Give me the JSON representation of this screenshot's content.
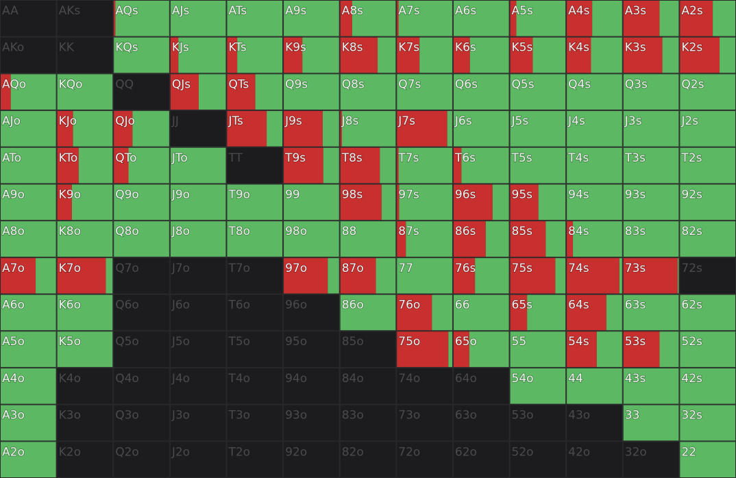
{
  "colors": {
    "raise": "#c8302f",
    "call": "#5cb862",
    "fold": "#1c1c1e",
    "grid": "#2a2a2c"
  },
  "rows": [
    [
      {
        "label": "AA",
        "raise": 0,
        "call": 0
      },
      {
        "label": "AKs",
        "raise": 0,
        "call": 0
      },
      {
        "label": "AQs",
        "raise": 4,
        "call": 96
      },
      {
        "label": "AJs",
        "raise": 0,
        "call": 100
      },
      {
        "label": "ATs",
        "raise": 0,
        "call": 100
      },
      {
        "label": "A9s",
        "raise": 0,
        "call": 100
      },
      {
        "label": "A8s",
        "raise": 22,
        "call": 78
      },
      {
        "label": "A7s",
        "raise": 4,
        "call": 96
      },
      {
        "label": "A6s",
        "raise": 0,
        "call": 100
      },
      {
        "label": "A5s",
        "raise": 12,
        "call": 88
      },
      {
        "label": "A4s",
        "raise": 46,
        "call": 54
      },
      {
        "label": "A3s",
        "raise": 65,
        "call": 35
      },
      {
        "label": "A2s",
        "raise": 59,
        "call": 41
      }
    ],
    [
      {
        "label": "AKo",
        "raise": 0,
        "call": 0
      },
      {
        "label": "KK",
        "raise": 0,
        "call": 0
      },
      {
        "label": "KQs",
        "raise": 0,
        "call": 100
      },
      {
        "label": "KJs",
        "raise": 15,
        "call": 85
      },
      {
        "label": "KTs",
        "raise": 19,
        "call": 81
      },
      {
        "label": "K9s",
        "raise": 34,
        "call": 66
      },
      {
        "label": "K8s",
        "raise": 67,
        "call": 33
      },
      {
        "label": "K7s",
        "raise": 41,
        "call": 59
      },
      {
        "label": "K6s",
        "raise": 30,
        "call": 70
      },
      {
        "label": "K5s",
        "raise": 41,
        "call": 59
      },
      {
        "label": "K4s",
        "raise": 44,
        "call": 56
      },
      {
        "label": "K3s",
        "raise": 70,
        "call": 30
      },
      {
        "label": "K2s",
        "raise": 71,
        "call": 29
      }
    ],
    [
      {
        "label": "AQo",
        "raise": 19,
        "call": 81
      },
      {
        "label": "KQo",
        "raise": 0,
        "call": 100
      },
      {
        "label": "QQ",
        "raise": 0,
        "call": 0
      },
      {
        "label": "QJs",
        "raise": 51,
        "call": 49
      },
      {
        "label": "QTs",
        "raise": 51,
        "call": 49
      },
      {
        "label": "Q9s",
        "raise": 0,
        "call": 100
      },
      {
        "label": "Q8s",
        "raise": 0,
        "call": 100
      },
      {
        "label": "Q7s",
        "raise": 0,
        "call": 100
      },
      {
        "label": "Q6s",
        "raise": 0,
        "call": 100
      },
      {
        "label": "Q5s",
        "raise": 0,
        "call": 100
      },
      {
        "label": "Q4s",
        "raise": 0,
        "call": 100
      },
      {
        "label": "Q3s",
        "raise": 0,
        "call": 100
      },
      {
        "label": "Q2s",
        "raise": 0,
        "call": 100
      }
    ],
    [
      {
        "label": "AJo",
        "raise": 0,
        "call": 100
      },
      {
        "label": "KJo",
        "raise": 29,
        "call": 71
      },
      {
        "label": "QJo",
        "raise": 34,
        "call": 66
      },
      {
        "label": "JJ",
        "raise": 0,
        "call": 0
      },
      {
        "label": "JTs",
        "raise": 71,
        "call": 29
      },
      {
        "label": "J9s",
        "raise": 70,
        "call": 30
      },
      {
        "label": "J8s",
        "raise": 4,
        "call": 96
      },
      {
        "label": "J7s",
        "raise": 90,
        "call": 10
      },
      {
        "label": "J6s",
        "raise": 0,
        "call": 100
      },
      {
        "label": "J5s",
        "raise": 0,
        "call": 100
      },
      {
        "label": "J4s",
        "raise": 0,
        "call": 100
      },
      {
        "label": "J3s",
        "raise": 0,
        "call": 100
      },
      {
        "label": "J2s",
        "raise": 0,
        "call": 100
      }
    ],
    [
      {
        "label": "ATo",
        "raise": 0,
        "call": 100
      },
      {
        "label": "KTo",
        "raise": 39,
        "call": 61
      },
      {
        "label": "QTo",
        "raise": 27,
        "call": 73
      },
      {
        "label": "JTo",
        "raise": 0,
        "call": 100
      },
      {
        "label": "TT",
        "raise": 0,
        "call": 0
      },
      {
        "label": "T9s",
        "raise": 71,
        "call": 29
      },
      {
        "label": "T8s",
        "raise": 71,
        "call": 29
      },
      {
        "label": "T7s",
        "raise": 4,
        "call": 96
      },
      {
        "label": "T6s",
        "raise": 15,
        "call": 85
      },
      {
        "label": "T5s",
        "raise": 0,
        "call": 100
      },
      {
        "label": "T4s",
        "raise": 0,
        "call": 100
      },
      {
        "label": "T3s",
        "raise": 0,
        "call": 100
      },
      {
        "label": "T2s",
        "raise": 0,
        "call": 100
      }
    ],
    [
      {
        "label": "A9o",
        "raise": 0,
        "call": 100
      },
      {
        "label": "K9o",
        "raise": 27,
        "call": 73
      },
      {
        "label": "Q9o",
        "raise": 0,
        "call": 100
      },
      {
        "label": "J9o",
        "raise": 0,
        "call": 100
      },
      {
        "label": "T9o",
        "raise": 0,
        "call": 100
      },
      {
        "label": "99",
        "raise": 0,
        "call": 100
      },
      {
        "label": "98s",
        "raise": 74,
        "call": 26
      },
      {
        "label": "97s",
        "raise": 5,
        "call": 95
      },
      {
        "label": "96s",
        "raise": 70,
        "call": 30
      },
      {
        "label": "95s",
        "raise": 51,
        "call": 49
      },
      {
        "label": "94s",
        "raise": 0,
        "call": 100
      },
      {
        "label": "93s",
        "raise": 0,
        "call": 100
      },
      {
        "label": "92s",
        "raise": 0,
        "call": 100
      }
    ],
    [
      {
        "label": "A8o",
        "raise": 0,
        "call": 100
      },
      {
        "label": "K8o",
        "raise": 0,
        "call": 100
      },
      {
        "label": "Q8o",
        "raise": 0,
        "call": 100
      },
      {
        "label": "J8o",
        "raise": 0,
        "call": 100
      },
      {
        "label": "T8o",
        "raise": 0,
        "call": 100
      },
      {
        "label": "98o",
        "raise": 0,
        "call": 100
      },
      {
        "label": "88",
        "raise": 0,
        "call": 100
      },
      {
        "label": "87s",
        "raise": 17,
        "call": 83
      },
      {
        "label": "86s",
        "raise": 58,
        "call": 42
      },
      {
        "label": "85s",
        "raise": 64,
        "call": 36
      },
      {
        "label": "84s",
        "raise": 12,
        "call": 88
      },
      {
        "label": "83s",
        "raise": 0,
        "call": 100
      },
      {
        "label": "82s",
        "raise": 0,
        "call": 100
      }
    ],
    [
      {
        "label": "A7o",
        "raise": 63,
        "call": 37
      },
      {
        "label": "K7o",
        "raise": 87,
        "call": 13
      },
      {
        "label": "Q7o",
        "raise": 0,
        "call": 0
      },
      {
        "label": "J7o",
        "raise": 0,
        "call": 0
      },
      {
        "label": "T7o",
        "raise": 0,
        "call": 0
      },
      {
        "label": "97o",
        "raise": 79,
        "call": 21
      },
      {
        "label": "87o",
        "raise": 64,
        "call": 36
      },
      {
        "label": "77",
        "raise": 0,
        "call": 100
      },
      {
        "label": "76s",
        "raise": 39,
        "call": 61
      },
      {
        "label": "75s",
        "raise": 81,
        "call": 19
      },
      {
        "label": "74s",
        "raise": 94,
        "call": 6
      },
      {
        "label": "73s",
        "raise": 97,
        "call": 3
      },
      {
        "label": "72s",
        "raise": 0,
        "call": 0
      }
    ],
    [
      {
        "label": "A6o",
        "raise": 0,
        "call": 100
      },
      {
        "label": "K6o",
        "raise": 0,
        "call": 100
      },
      {
        "label": "Q6o",
        "raise": 0,
        "call": 0
      },
      {
        "label": "J6o",
        "raise": 0,
        "call": 0
      },
      {
        "label": "T6o",
        "raise": 0,
        "call": 0
      },
      {
        "label": "96o",
        "raise": 0,
        "call": 0
      },
      {
        "label": "86o",
        "raise": 0,
        "call": 100
      },
      {
        "label": "76o",
        "raise": 63,
        "call": 37
      },
      {
        "label": "66",
        "raise": 0,
        "call": 100
      },
      {
        "label": "65s",
        "raise": 31,
        "call": 69
      },
      {
        "label": "64s",
        "raise": 71,
        "call": 29
      },
      {
        "label": "63s",
        "raise": 0,
        "call": 100
      },
      {
        "label": "62s",
        "raise": 0,
        "call": 100
      }
    ],
    [
      {
        "label": "A5o",
        "raise": 0,
        "call": 100
      },
      {
        "label": "K5o",
        "raise": 0,
        "call": 100
      },
      {
        "label": "Q5o",
        "raise": 0,
        "call": 0
      },
      {
        "label": "J5o",
        "raise": 0,
        "call": 0
      },
      {
        "label": "T5o",
        "raise": 0,
        "call": 0
      },
      {
        "label": "95o",
        "raise": 0,
        "call": 0
      },
      {
        "label": "85o",
        "raise": 0,
        "call": 0
      },
      {
        "label": "75o",
        "raise": 92,
        "call": 8
      },
      {
        "label": "65o",
        "raise": 29,
        "call": 71
      },
      {
        "label": "55",
        "raise": 0,
        "call": 100
      },
      {
        "label": "54s",
        "raise": 54,
        "call": 46
      },
      {
        "label": "53s",
        "raise": 65,
        "call": 35
      },
      {
        "label": "52s",
        "raise": 0,
        "call": 100
      }
    ],
    [
      {
        "label": "A4o",
        "raise": 0,
        "call": 100
      },
      {
        "label": "K4o",
        "raise": 0,
        "call": 0
      },
      {
        "label": "Q4o",
        "raise": 0,
        "call": 0
      },
      {
        "label": "J4o",
        "raise": 0,
        "call": 0
      },
      {
        "label": "T4o",
        "raise": 0,
        "call": 0
      },
      {
        "label": "94o",
        "raise": 0,
        "call": 0
      },
      {
        "label": "84o",
        "raise": 0,
        "call": 0
      },
      {
        "label": "74o",
        "raise": 0,
        "call": 0
      },
      {
        "label": "64o",
        "raise": 0,
        "call": 0
      },
      {
        "label": "54o",
        "raise": 0,
        "call": 100
      },
      {
        "label": "44",
        "raise": 0,
        "call": 100
      },
      {
        "label": "43s",
        "raise": 0,
        "call": 100
      },
      {
        "label": "42s",
        "raise": 0,
        "call": 100
      }
    ],
    [
      {
        "label": "A3o",
        "raise": 0,
        "call": 100
      },
      {
        "label": "K3o",
        "raise": 0,
        "call": 0
      },
      {
        "label": "Q3o",
        "raise": 0,
        "call": 0
      },
      {
        "label": "J3o",
        "raise": 0,
        "call": 0
      },
      {
        "label": "T3o",
        "raise": 0,
        "call": 0
      },
      {
        "label": "93o",
        "raise": 0,
        "call": 0
      },
      {
        "label": "83o",
        "raise": 0,
        "call": 0
      },
      {
        "label": "73o",
        "raise": 0,
        "call": 0
      },
      {
        "label": "63o",
        "raise": 0,
        "call": 0
      },
      {
        "label": "53o",
        "raise": 0,
        "call": 0
      },
      {
        "label": "43o",
        "raise": 0,
        "call": 0
      },
      {
        "label": "33",
        "raise": 0,
        "call": 100
      },
      {
        "label": "32s",
        "raise": 0,
        "call": 100
      }
    ],
    [
      {
        "label": "A2o",
        "raise": 0,
        "call": 100
      },
      {
        "label": "K2o",
        "raise": 0,
        "call": 0
      },
      {
        "label": "Q2o",
        "raise": 0,
        "call": 0
      },
      {
        "label": "J2o",
        "raise": 0,
        "call": 0
      },
      {
        "label": "T2o",
        "raise": 0,
        "call": 0
      },
      {
        "label": "92o",
        "raise": 0,
        "call": 0
      },
      {
        "label": "82o",
        "raise": 0,
        "call": 0
      },
      {
        "label": "72o",
        "raise": 0,
        "call": 0
      },
      {
        "label": "62o",
        "raise": 0,
        "call": 0
      },
      {
        "label": "52o",
        "raise": 0,
        "call": 0
      },
      {
        "label": "42o",
        "raise": 0,
        "call": 0
      },
      {
        "label": "32o",
        "raise": 0,
        "call": 0
      },
      {
        "label": "22",
        "raise": 0,
        "call": 100
      }
    ]
  ]
}
